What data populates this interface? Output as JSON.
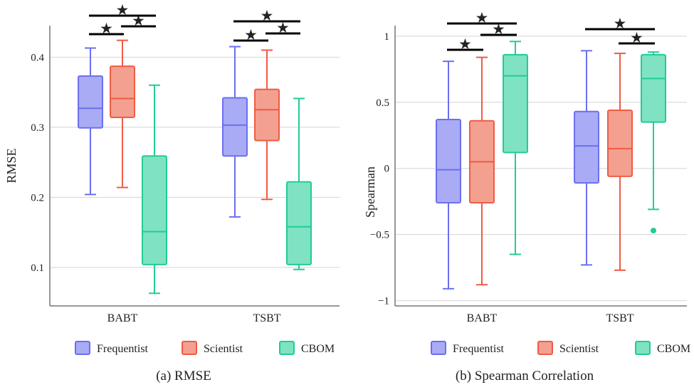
{
  "colors": {
    "Frequentist": {
      "stroke": "#6b6ff0",
      "fill": "#a9abf4"
    },
    "Scientist": {
      "stroke": "#ef5b45",
      "fill": "#f4a090"
    },
    "CBOM": {
      "stroke": "#21cc96",
      "fill": "#7fe2c3"
    },
    "sig_line": "#000000",
    "grid": "#d4d4d4",
    "axis": "#777777"
  },
  "legend": {
    "items": [
      "Frequentist",
      "Scientist",
      "CBOM"
    ]
  },
  "captions": {
    "a": "(a) RMSE",
    "b": "(b) Spearman Correlation"
  },
  "significance_marker": "★",
  "chart_data": [
    {
      "type": "box",
      "caption": "(a) RMSE",
      "xlabel": "",
      "ylabel": "RMSE",
      "categories": [
        "BABT",
        "TSBT"
      ],
      "ylim": [
        0.045,
        0.445
      ],
      "yticks": [
        0.1,
        0.2,
        0.3,
        0.4
      ],
      "ytick_labels": [
        "0.1",
        "0.2",
        "0.3",
        "0.4"
      ],
      "grid": true,
      "legend": "bottom",
      "series": [
        {
          "name": "Frequentist",
          "boxes": [
            {
              "whislo": 0.204,
              "q1": 0.299,
              "med": 0.327,
              "q3": 0.373,
              "whishi": 0.413,
              "fliers": []
            },
            {
              "whislo": 0.172,
              "q1": 0.259,
              "med": 0.303,
              "q3": 0.342,
              "whishi": 0.415,
              "fliers": []
            }
          ]
        },
        {
          "name": "Scientist",
          "boxes": [
            {
              "whislo": 0.214,
              "q1": 0.314,
              "med": 0.341,
              "q3": 0.387,
              "whishi": 0.424,
              "fliers": []
            },
            {
              "whislo": 0.197,
              "q1": 0.281,
              "med": 0.325,
              "q3": 0.354,
              "whishi": 0.41,
              "fliers": []
            }
          ]
        },
        {
          "name": "CBOM",
          "boxes": [
            {
              "whislo": 0.063,
              "q1": 0.104,
              "med": 0.151,
              "q3": 0.259,
              "whishi": 0.36,
              "fliers": []
            },
            {
              "whislo": 0.097,
              "q1": 0.104,
              "med": 0.158,
              "q3": 0.222,
              "whishi": 0.341,
              "fliers": []
            }
          ]
        }
      ],
      "significance": [
        {
          "group": 0,
          "from": "Frequentist",
          "to": "Scientist"
        },
        {
          "group": 0,
          "from": "Scientist",
          "to": "CBOM"
        },
        {
          "group": 0,
          "from": "Frequentist",
          "to": "CBOM"
        },
        {
          "group": 1,
          "from": "Frequentist",
          "to": "Scientist"
        },
        {
          "group": 1,
          "from": "Scientist",
          "to": "CBOM"
        },
        {
          "group": 1,
          "from": "Frequentist",
          "to": "CBOM"
        }
      ]
    },
    {
      "type": "box",
      "caption": "(b) Spearman Correlation",
      "xlabel": "",
      "ylabel": "Spearman",
      "categories": [
        "BABT",
        "TSBT"
      ],
      "ylim": [
        -1.04,
        1.08
      ],
      "yticks": [
        -1,
        -0.5,
        0,
        0.5,
        1
      ],
      "ytick_labels": [
        "−1",
        "−0.5",
        "0",
        "0.5",
        "1"
      ],
      "grid": true,
      "legend": "bottom",
      "series": [
        {
          "name": "Frequentist",
          "boxes": [
            {
              "whislo": -0.91,
              "q1": -0.26,
              "med": -0.01,
              "q3": 0.37,
              "whishi": 0.81,
              "fliers": []
            },
            {
              "whislo": -0.73,
              "q1": -0.11,
              "med": 0.17,
              "q3": 0.43,
              "whishi": 0.89,
              "fliers": []
            }
          ]
        },
        {
          "name": "Scientist",
          "boxes": [
            {
              "whislo": -0.88,
              "q1": -0.26,
              "med": 0.05,
              "q3": 0.36,
              "whishi": 0.84,
              "fliers": []
            },
            {
              "whislo": -0.77,
              "q1": -0.06,
              "med": 0.15,
              "q3": 0.44,
              "whishi": 0.87,
              "fliers": []
            }
          ]
        },
        {
          "name": "CBOM",
          "boxes": [
            {
              "whislo": -0.65,
              "q1": 0.12,
              "med": 0.7,
              "q3": 0.86,
              "whishi": 0.96,
              "fliers": []
            },
            {
              "whislo": -0.31,
              "q1": 0.35,
              "med": 0.68,
              "q3": 0.86,
              "whishi": 0.88,
              "fliers": [
                -0.47
              ]
            }
          ]
        }
      ],
      "significance": [
        {
          "group": 0,
          "from": "Frequentist",
          "to": "Scientist"
        },
        {
          "group": 0,
          "from": "Scientist",
          "to": "CBOM"
        },
        {
          "group": 0,
          "from": "Frequentist",
          "to": "CBOM"
        },
        {
          "group": 1,
          "from": "Scientist",
          "to": "CBOM"
        },
        {
          "group": 1,
          "from": "Frequentist",
          "to": "CBOM"
        }
      ]
    }
  ]
}
